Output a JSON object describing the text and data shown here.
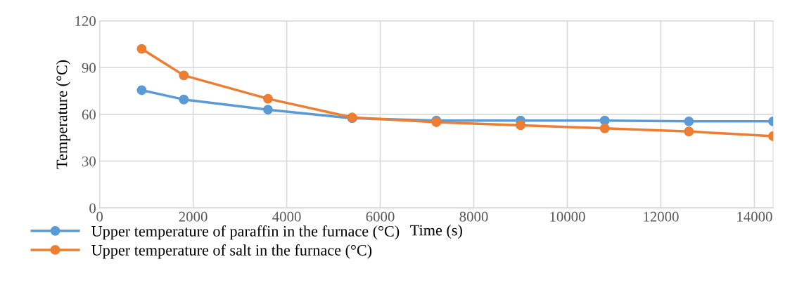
{
  "chart_data": {
    "type": "line",
    "xlabel": "Time (s)",
    "ylabel": "Temperature (°C)",
    "x": [
      900,
      1800,
      3600,
      5400,
      7200,
      9000,
      10800,
      12600,
      14400
    ],
    "series": [
      {
        "name": "Upper temperature of paraffin in the furnace (°C)",
        "color": "#5b9bd5",
        "values": [
          75.5,
          69.5,
          63,
          57.5,
          56,
          56,
          56,
          55.5,
          55.5
        ]
      },
      {
        "name": "Upper temperature of salt in the furnace (°C)",
        "color": "#ed7d31",
        "values": [
          102,
          85,
          70,
          58,
          55,
          53,
          51,
          49,
          46
        ]
      }
    ],
    "xlim": [
      0,
      14400
    ],
    "xticks": [
      0,
      2000,
      4000,
      6000,
      8000,
      10000,
      12000,
      14000
    ],
    "ylim": [
      0,
      120
    ],
    "yticks": [
      0,
      30,
      60,
      90,
      120
    ],
    "grid": true,
    "legend": "bottom left",
    "marker": "circle",
    "line_style": "solid"
  }
}
